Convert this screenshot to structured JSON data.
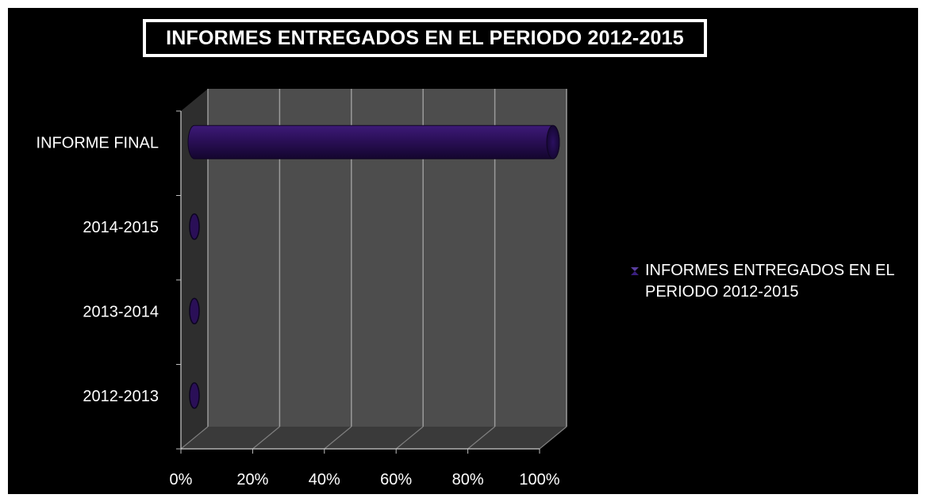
{
  "chart_data": {
    "type": "bar",
    "orientation": "horizontal",
    "title": "INFORMES ENTREGADOS EN EL PERIODO 2012-2015",
    "categories": [
      "2012-2013",
      "2013-2014",
      "2014-2015",
      "INFORME FINAL"
    ],
    "series": [
      {
        "name": "INFORMES ENTREGADOS EN EL PERIODO 2012-2015",
        "values": [
          0,
          0,
          0,
          1
        ],
        "color": "#2a0f57"
      }
    ],
    "x_ticks": [
      "0%",
      "20%",
      "40%",
      "60%",
      "80%",
      "100%"
    ],
    "xlim": [
      0,
      1
    ],
    "value_format": "percent",
    "grid": true,
    "legend_position": "right",
    "background": "#000000",
    "wall_color": "#4d4d4d",
    "floor_color": "#3a3a3a",
    "text_color": "#ffffff"
  }
}
